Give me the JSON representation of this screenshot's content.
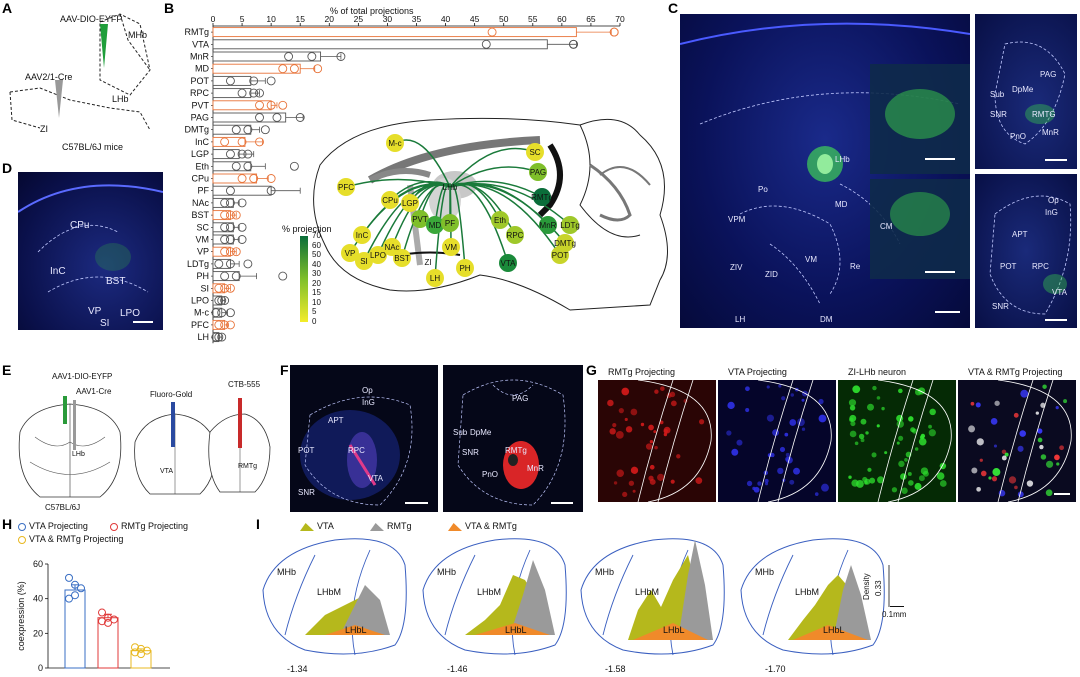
{
  "panel_labels": {
    "a": "A",
    "b": "B",
    "c": "C",
    "d": "D",
    "e": "E",
    "f": "F",
    "g": "G",
    "h": "H",
    "i": "I"
  },
  "panel_a": {
    "virus_top": "AAV-DIO-EYFP",
    "virus_bottom": "AAV2/1-Cre",
    "mhb": "MHb",
    "lhb": "LHb",
    "zi": "ZI",
    "mice": "C57BL/6J mice",
    "colors": {
      "eyfp": "#1f9e3a",
      "cre": "#888888"
    }
  },
  "panel_c": {
    "main_labels": [
      "LHb",
      "Po",
      "MD",
      "CM",
      "VPM",
      "VM",
      "Re",
      "ZIV",
      "ZID",
      "LH",
      "DM"
    ],
    "top_inset_labels": [
      "PAG",
      "DpMe",
      "Sub",
      "SNR",
      "RMTG",
      "MnR",
      "PnO"
    ],
    "bottom_inset_labels": [
      "Op",
      "InG",
      "APT",
      "POT",
      "RPC",
      "SNR",
      "VTA"
    ]
  },
  "panel_d": {
    "labels": [
      "CPu",
      "InC",
      "BST",
      "VP",
      "SI",
      "LPO"
    ]
  },
  "panel_e": {
    "virus_top": "AAV1-DIO-EYFP",
    "virus_cre": "AAV1-Cre",
    "lhb": "LHb",
    "mice": "C57BL/6J",
    "tracer1": "Fluoro-Gold",
    "tracer2": "CTB-555",
    "vta": "VTA",
    "rmtg": "RMTg"
  },
  "panel_f": {
    "left_labels": [
      "Op",
      "InG",
      "APT",
      "POT",
      "RPC",
      "SNR",
      "VTA"
    ],
    "right_labels": [
      "PAG",
      "Sub",
      "DpMe",
      "SNR",
      "RMTg",
      "PnO",
      "MnR"
    ]
  },
  "panel_g": {
    "titles": [
      "RMTg Projecting",
      "VTA Projecting",
      "ZI-LHb neuron",
      "VTA & RMTg Projecting"
    ],
    "colors": [
      "#d01a1a",
      "#2d2fe0",
      "#2ee02e",
      "#c8c8d8"
    ]
  },
  "panel_h": {
    "legend": [
      "VTA Projecting",
      "RMTg Projecting",
      "VTA & RMTg Projecting"
    ],
    "ylabel": "coexpression (%)",
    "yticks": [
      "0",
      "20",
      "40",
      "60"
    ],
    "colors": {
      "vta": "#3a6fc4",
      "rmtg": "#e03a3a",
      "both": "#e8b820"
    }
  },
  "panel_i": {
    "legend": [
      "VTA",
      "RMTg",
      "VTA & RMTg"
    ],
    "colors": {
      "vta": "#b5b81c",
      "rmtg": "#9a9a9a",
      "both": "#f08a2a"
    },
    "region_labels": {
      "mhb": "MHb",
      "lhbm": "LHbM",
      "lhbl": "LHbL"
    },
    "coords": [
      "-1.34",
      "-1.46",
      "-1.58",
      "-1.70"
    ],
    "scale_y": "Density",
    "scale_y_value": "0.33",
    "scale_x": "0.1mm"
  },
  "sagittal": {
    "regions": [
      "M-c",
      "SC",
      "PAG",
      "PFC",
      "CPu",
      "LGP",
      "InC",
      "LHb",
      "RMTg",
      "PVT",
      "MD",
      "PF",
      "Eth",
      "MnR",
      "LDTg",
      "RPC",
      "DMTg",
      "POT",
      "VP",
      "SI",
      "LPO",
      "NAc",
      "BST",
      "VM",
      "ZI",
      "LH",
      "PH",
      "VTA"
    ],
    "legend_title": "% projection",
    "legend_ticks": [
      "70",
      "60",
      "50",
      "40",
      "30",
      "20",
      "15",
      "10",
      "5",
      "0"
    ]
  },
  "chart_data": {
    "type": "bar",
    "orientation": "horizontal",
    "title": "% of total projections",
    "xlim": [
      0,
      70
    ],
    "xticks": [
      0,
      5,
      10,
      15,
      20,
      25,
      30,
      35,
      40,
      45,
      50,
      55,
      60,
      65,
      70
    ],
    "categories": [
      "RMTg",
      "VTA",
      "MnR",
      "MD",
      "POT",
      "RPC",
      "PVT",
      "PAG",
      "DMTg",
      "InC",
      "LGP",
      "Eth",
      "CPu",
      "PF",
      "NAc",
      "BST",
      "SC",
      "VM",
      "VP",
      "LDTg",
      "PH",
      "SI",
      "LPO",
      "M-c",
      "PFC",
      "LH"
    ],
    "values": [
      62.5,
      57.5,
      18.5,
      15.0,
      6.5,
      6.5,
      10.0,
      12.5,
      6.5,
      5.5,
      4.5,
      6.5,
      7.5,
      10.0,
      3.5,
      3.0,
      3.5,
      3.5,
      3.0,
      3.0,
      4.5,
      2.0,
      1.5,
      1.5,
      2.0,
      1.0
    ],
    "errors": [
      6.0,
      5.0,
      3.5,
      2.5,
      2.5,
      1.5,
      1.0,
      3.0,
      1.5,
      3.0,
      2.5,
      2.5,
      2.0,
      5.0,
      1.0,
      1.0,
      1.0,
      1.0,
      1.0,
      1.5,
      3.0,
      1.0,
      0.5,
      1.0,
      0.5,
      0.5
    ],
    "bar_color": [
      "orange",
      "gray",
      "gray",
      "orange",
      "gray",
      "gray",
      "orange",
      "gray",
      "gray",
      "orange",
      "gray",
      "gray",
      "orange",
      "gray",
      "gray",
      "orange",
      "gray",
      "gray",
      "orange",
      "gray",
      "gray",
      "orange",
      "gray",
      "gray",
      "orange",
      "gray"
    ],
    "points": [
      [
        48,
        69,
        69
      ],
      [
        47,
        62,
        62
      ],
      [
        13,
        17,
        22
      ],
      [
        12,
        14,
        18
      ],
      [
        3,
        7,
        10
      ],
      [
        5,
        7,
        8
      ],
      [
        8,
        10,
        12
      ],
      [
        8,
        11,
        15
      ],
      [
        4,
        6,
        9
      ],
      [
        2,
        5,
        8
      ],
      [
        3,
        5,
        6
      ],
      [
        4,
        6,
        14
      ],
      [
        5,
        7,
        10
      ],
      [
        3,
        10,
        21
      ],
      [
        2,
        3,
        5
      ],
      [
        2,
        3,
        4
      ],
      [
        2,
        3,
        5
      ],
      [
        2,
        3,
        5
      ],
      [
        2,
        3,
        4
      ],
      [
        1,
        3,
        6
      ],
      [
        2,
        4,
        12
      ],
      [
        1,
        2,
        3
      ],
      [
        1,
        1.5,
        2
      ],
      [
        0.5,
        1.5,
        3
      ],
      [
        1,
        2,
        3
      ],
      [
        0.5,
        1,
        1.5
      ]
    ],
    "colors": {
      "orange": "#e8743a",
      "gray": "#555555"
    }
  }
}
